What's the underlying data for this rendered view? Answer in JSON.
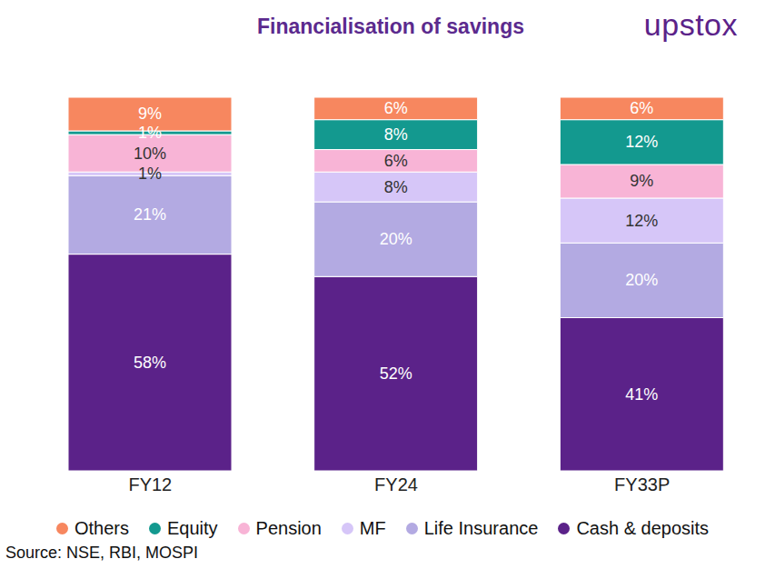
{
  "chart_data": {
    "type": "bar",
    "title": "Financialisation of savings",
    "logo": "upstox",
    "source": "Source: NSE, RBI, MOSPI",
    "categories": [
      "FY12",
      "FY24",
      "FY33P"
    ],
    "stacked": true,
    "data_labels": true,
    "tick_labels": "x",
    "legend": "bottom",
    "ylim": [
      0,
      100
    ],
    "series": [
      {
        "name": "Cash & deposits",
        "color": "#5b2289",
        "values": [
          58,
          52,
          41
        ],
        "value_labels": [
          "58%",
          "52%",
          "41%"
        ]
      },
      {
        "name": "Life Insurance",
        "color": "#b3aae2",
        "values": [
          21,
          20,
          20
        ],
        "value_labels": [
          "21%",
          "20%",
          "20%"
        ]
      },
      {
        "name": "MF",
        "color": "#d6c6f8",
        "values": [
          1,
          8,
          12
        ],
        "value_labels": [
          "1%",
          "8%",
          "12%"
        ]
      },
      {
        "name": "Pension",
        "color": "#f8b4d6",
        "values": [
          10,
          6,
          9
        ],
        "value_labels": [
          "10%",
          "6%",
          "9%"
        ]
      },
      {
        "name": "Equity",
        "color": "#13998f",
        "values": [
          1,
          8,
          12
        ],
        "value_labels": [
          "1%",
          "8%",
          "12%"
        ]
      },
      {
        "name": "Others",
        "color": "#f7875f",
        "values": [
          9,
          6,
          6
        ],
        "value_labels": [
          "9%",
          "6%",
          "6%"
        ]
      }
    ]
  }
}
